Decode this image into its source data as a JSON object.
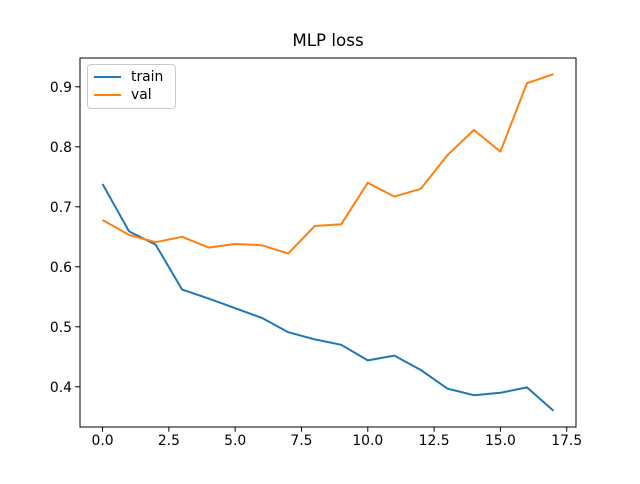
{
  "chart_data": {
    "type": "line",
    "title": "MLP loss",
    "xlabel": "",
    "ylabel": "",
    "grid": false,
    "background": "#ffffff",
    "x": [
      0,
      1,
      2,
      3,
      4,
      5,
      6,
      7,
      8,
      9,
      10,
      11,
      12,
      13,
      14,
      15,
      16,
      17
    ],
    "series": [
      {
        "name": "train",
        "color": "#1f77b4",
        "values": [
          0.738,
          0.659,
          0.637,
          0.562,
          0.547,
          0.531,
          0.515,
          0.491,
          0.479,
          0.47,
          0.444,
          0.452,
          0.428,
          0.397,
          0.386,
          0.39,
          0.399,
          0.36
        ]
      },
      {
        "name": "val",
        "color": "#ff7f0e",
        "values": [
          0.678,
          0.653,
          0.641,
          0.65,
          0.632,
          0.638,
          0.636,
          0.622,
          0.668,
          0.671,
          0.74,
          0.717,
          0.73,
          0.786,
          0.828,
          0.792,
          0.906,
          0.921
        ]
      }
    ],
    "xlim": [
      -0.85,
      17.85
    ],
    "ylim": [
      0.333,
      0.948
    ],
    "xticks": [
      0,
      2.5,
      5,
      7.5,
      10,
      12.5,
      15,
      17.5
    ],
    "xtick_labels": [
      "0.0",
      "2.5",
      "5.0",
      "7.5",
      "10.0",
      "12.5",
      "15.0",
      "17.5"
    ],
    "yticks": [
      0.4,
      0.5,
      0.6,
      0.7,
      0.8,
      0.9
    ],
    "ytick_labels": [
      "0.4",
      "0.5",
      "0.6",
      "0.7",
      "0.8",
      "0.9"
    ],
    "legend": {
      "position": "upper left",
      "entries": [
        "train",
        "val"
      ]
    }
  }
}
